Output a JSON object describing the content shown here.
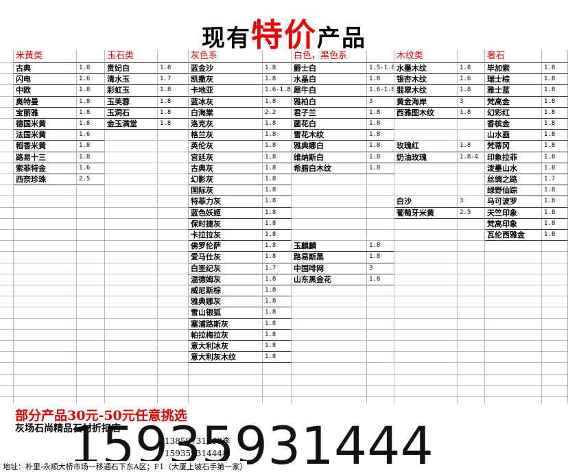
{
  "title": {
    "before": "现有",
    "highlight": "特价",
    "after": "产品"
  },
  "columns": [
    {
      "header": "米黄类",
      "rows": [
        [
          "古典",
          "1.8"
        ],
        [
          "闪电",
          "1.6"
        ],
        [
          "中欧",
          "1.8"
        ],
        [
          "奥特曼",
          "1.8"
        ],
        [
          "宝丽雅",
          "1.8"
        ],
        [
          "德国米黄",
          "1.8"
        ],
        [
          "法国米黄",
          "1.6"
        ],
        [
          "稻香米黄",
          "1.8"
        ],
        [
          "路易十三",
          "1.8"
        ],
        [
          "索菲特金",
          "1.6"
        ],
        [
          "西奈珍珠",
          "2.5"
        ]
      ]
    },
    {
      "header": "玉石类",
      "rows": [
        [
          "贵妃白",
          "1.8"
        ],
        [
          "清水玉",
          "1.7"
        ],
        [
          "彩虹玉",
          "1.8"
        ],
        [
          "玉芙蓉",
          "1.8"
        ],
        [
          "玉洞石",
          "1.8"
        ],
        [
          "金玉满堂",
          "1.8"
        ]
      ]
    },
    {
      "header": "灰色系",
      "rows": [
        [
          "蓝金沙",
          "1.8"
        ],
        [
          "凯撒灰",
          "1.8"
        ],
        [
          "卡地亚",
          "1.6-1.8"
        ],
        [
          "蓝冰灰",
          "1.8"
        ],
        [
          "白海棠",
          "2.2"
        ],
        [
          "洛克灰",
          "1.8"
        ],
        [
          "格兰灰",
          "1.8"
        ],
        [
          "英伦灰",
          "1.8"
        ],
        [
          "宫廷灰",
          "1.8"
        ],
        [
          "古典灰",
          "1.8"
        ],
        [
          "幻影灰",
          "1.8"
        ],
        [
          "国际灰",
          "1.8"
        ],
        [
          "特菲力灰",
          "1.8"
        ],
        [
          "蓝色妖姬",
          "1.8"
        ],
        [
          "保时捷灰",
          "1.8"
        ],
        [
          "卡拉拉灰",
          "1.8"
        ],
        [
          "佛罗伦萨",
          "1.8"
        ],
        [
          "爱马仕灰",
          "1.8"
        ],
        [
          "白垩纪灰",
          "1.7"
        ],
        [
          "温德姆灰",
          "1.8"
        ],
        [
          "威尼斯棕",
          "1.8"
        ],
        [
          "雅典娜灰",
          "1.8"
        ],
        [
          "雪山银狐",
          "1.8"
        ],
        [
          "塞浦路斯灰",
          "1.8"
        ],
        [
          "帕拉梅拉灰",
          "1.8"
        ],
        [
          "意大利冰灰",
          "1.8"
        ],
        [
          "意大利灰木纹",
          "1.8"
        ]
      ]
    },
    {
      "header": "白色，黑色系",
      "rows": [
        [
          "爵士白",
          "1.5-1.8"
        ],
        [
          "水晶白",
          "1.8"
        ],
        [
          "犀牛白",
          "1.6-1.8"
        ],
        [
          "雅柏白",
          "3"
        ],
        [
          "君子兰",
          "1.8"
        ],
        [
          "菌花白",
          "1.8"
        ],
        [
          "雪花木纹",
          "1.8"
        ],
        [
          "雅典娜白",
          "1.8"
        ],
        [
          "维纳斯白",
          "1.8"
        ],
        [
          "希腊白木纹",
          "1.8"
        ],
        null,
        null,
        null,
        null,
        null,
        null,
        [
          "玉麒麟",
          "1.8"
        ],
        [
          "路易斯黑",
          "1.8"
        ],
        [
          "中国啡网",
          "3"
        ],
        [
          "山东黑金花",
          "1.8"
        ]
      ]
    },
    {
      "header": "木纹类",
      "rows": [
        [
          "水墨木纹",
          "1.8"
        ],
        [
          "银杏木纹",
          "1.6"
        ],
        [
          "翡翠木纹",
          "1.8"
        ],
        [
          "黄金海岸",
          "3"
        ],
        [
          "西雅图木纹",
          "1.8"
        ],
        null,
        null,
        [
          "玫瑰红",
          "1.8"
        ],
        [
          "奶油玫瑰",
          "1.8-4"
        ],
        null,
        null,
        null,
        [
          "白沙",
          "3"
        ],
        [
          "葡萄牙米黄",
          "2.5"
        ]
      ]
    },
    {
      "header": "奢石",
      "rows": [
        [
          "毕加索",
          "1.8"
        ],
        [
          "瑞士棕",
          "1.8"
        ],
        [
          "雅士蓝",
          "1.8"
        ],
        [
          "梵高金",
          "1.8"
        ],
        [
          "幻彩红",
          "1.8"
        ],
        [
          "香槟金",
          "1.8"
        ],
        [
          "山水画",
          "1.8"
        ],
        [
          "梵蒂冈",
          "1.8"
        ],
        [
          "印象拉菲",
          "1.8"
        ],
        [
          "泼墨山水",
          "1.8"
        ],
        [
          "丝绸之路",
          "1.7"
        ],
        [
          "绿野仙踪",
          "1.8"
        ],
        [
          "马可波罗",
          "1.8"
        ],
        [
          "天竺印象",
          "1.8"
        ],
        [
          "梵高印象",
          "1.8"
        ],
        [
          "瓦伦西雅金",
          "1.8"
        ]
      ]
    }
  ],
  "footer": {
    "promo": "部分产品30元-50元任意挑选",
    "shop": "灰场石尚精品石材折扣店",
    "phone1": "13859731268李",
    "phone2": "15935931444林",
    "big_phone": "15935931444",
    "address": "地址：朴里-永顺大桥市场一移通石下东A区；F1（大厦上坡石手第一家）"
  }
}
